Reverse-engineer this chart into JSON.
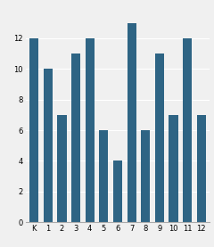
{
  "categories": [
    "K",
    "1",
    "2",
    "3",
    "4",
    "5",
    "6",
    "7",
    "8",
    "9",
    "10",
    "11",
    "12"
  ],
  "values": [
    12,
    10,
    7,
    11,
    12,
    6,
    4,
    13,
    6,
    11,
    7,
    12,
    7
  ],
  "bar_color": "#2e6484",
  "ylim": [
    0,
    14
  ],
  "yticks": [
    0,
    2,
    4,
    6,
    8,
    10,
    12
  ],
  "background_color": "#f0f0f0",
  "bar_width": 0.65
}
